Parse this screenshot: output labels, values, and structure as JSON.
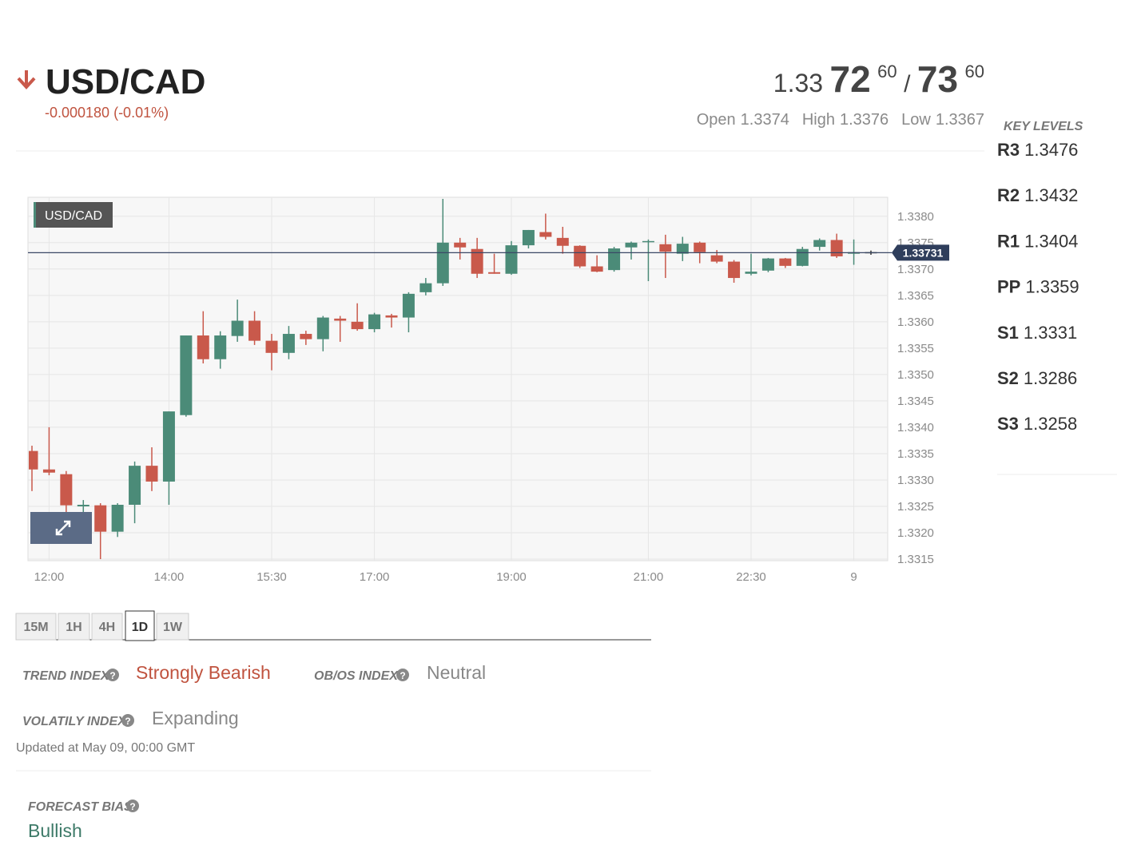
{
  "header": {
    "symbol": "USD/CAD",
    "change": "-0.000180 (-0.01%)",
    "bid": {
      "big": "1.33",
      "pips": "72",
      "fraction": "60"
    },
    "separator": "/",
    "ask": {
      "pips": "73",
      "fraction": "60"
    },
    "ohlc": [
      {
        "label": "Open",
        "value": "1.3374"
      },
      {
        "label": "High",
        "value": "1.3376"
      },
      {
        "label": "Low",
        "value": "1.3367"
      }
    ]
  },
  "key_levels": {
    "title": "KEY LEVELS",
    "levels": [
      {
        "name": "R3",
        "value": "1.3476"
      },
      {
        "name": "R2",
        "value": "1.3432"
      },
      {
        "name": "R1",
        "value": "1.3404"
      },
      {
        "name": "PP",
        "value": "1.3359"
      },
      {
        "name": "S1",
        "value": "1.3331"
      },
      {
        "name": "S2",
        "value": "1.3286"
      },
      {
        "name": "S3",
        "value": "1.3258"
      }
    ]
  },
  "timeframes": {
    "options": [
      "15M",
      "1H",
      "4H",
      "1D",
      "1W"
    ],
    "active": "1D"
  },
  "indices": [
    {
      "label": "TREND INDEX",
      "value": "Strongly Bearish",
      "color": "#c0533f"
    },
    {
      "label": "OB/OS INDEX",
      "value": "Neutral",
      "color": "#888888"
    },
    {
      "label": "VOLATILY INDEX",
      "value": "Expanding",
      "color": "#888888"
    }
  ],
  "updated": "Updated at May 09, 00:00 GMT",
  "forecast": {
    "label": "FORECAST BIAS",
    "value": "Bullish",
    "color": "#3d7a68"
  },
  "chart_data": {
    "type": "candlestick",
    "label": "USD/CAD",
    "categories": [
      null,
      "12:00",
      null,
      null,
      null,
      null,
      null,
      null,
      "14:00",
      null,
      null,
      null,
      null,
      null,
      "15:30",
      null,
      null,
      null,
      null,
      null,
      "17:00",
      null,
      null,
      null,
      null,
      null,
      null,
      null,
      "19:00",
      null,
      null,
      null,
      null,
      null,
      null,
      null,
      "21:00",
      null,
      null,
      null,
      null,
      null,
      "22:30",
      null,
      null,
      null,
      null,
      null,
      "9",
      null
    ],
    "open": [
      1.33355,
      1.3332,
      1.33311,
      1.3325,
      1.33252,
      1.33202,
      1.33253,
      1.33327,
      1.33297,
      1.33423,
      1.33574,
      1.33529,
      1.33573,
      1.33602,
      1.33564,
      1.33541,
      1.33577,
      1.33567,
      1.33606,
      1.336,
      1.33586,
      1.33612,
      1.33608,
      1.33656,
      1.33673,
      1.3375,
      1.33738,
      1.33694,
      1.33691,
      1.33745,
      1.3377,
      1.33759,
      1.33744,
      1.33705,
      1.33698,
      1.33741,
      1.33752,
      1.33747,
      1.33729,
      1.3375,
      1.33726,
      1.33714,
      1.33691,
      1.33697,
      1.3372,
      1.33706,
      1.33742,
      1.33755,
      1.33729,
      1.33732
    ],
    "high": [
      1.33365,
      1.334,
      1.33317,
      1.33262,
      1.33256,
      1.33256,
      1.33335,
      1.33362,
      1.3343,
      1.33574,
      1.3362,
      1.33582,
      1.33642,
      1.3362,
      1.33577,
      1.33592,
      1.33583,
      1.33611,
      1.33611,
      1.33635,
      1.33617,
      1.33615,
      1.33656,
      1.33683,
      1.33833,
      1.33759,
      1.33759,
      1.33729,
      1.33753,
      1.33774,
      1.33805,
      1.3378,
      1.33745,
      1.33726,
      1.33742,
      1.33752,
      1.33756,
      1.33765,
      1.33761,
      1.33752,
      1.33736,
      1.33717,
      1.33729,
      1.33721,
      1.33721,
      1.33742,
      1.33758,
      1.33767,
      1.33756,
      1.33735
    ],
    "low": [
      1.33279,
      1.33309,
      1.33238,
      1.33233,
      1.3315,
      1.33192,
      1.33218,
      1.33279,
      1.33253,
      1.3342,
      1.33521,
      1.33511,
      1.33562,
      1.33556,
      1.33508,
      1.33529,
      1.33556,
      1.33544,
      1.33562,
      1.33583,
      1.3358,
      1.33589,
      1.3358,
      1.3365,
      1.33668,
      1.33718,
      1.33683,
      1.33691,
      1.33689,
      1.33739,
      1.33756,
      1.33729,
      1.33702,
      1.33694,
      1.33695,
      1.33718,
      1.33677,
      1.33683,
      1.33715,
      1.33711,
      1.33711,
      1.33674,
      1.33688,
      1.33694,
      1.33702,
      1.33705,
      1.33735,
      1.33721,
      1.33708,
      1.33727
    ],
    "close": [
      1.3332,
      1.33314,
      1.33252,
      1.33253,
      1.33202,
      1.33253,
      1.33327,
      1.33297,
      1.3343,
      1.33574,
      1.33529,
      1.33574,
      1.33602,
      1.33564,
      1.33541,
      1.33577,
      1.33567,
      1.33608,
      1.33602,
      1.33586,
      1.33614,
      1.33608,
      1.33653,
      1.33673,
      1.3375,
      1.33741,
      1.33691,
      1.33691,
      1.33745,
      1.33774,
      1.33761,
      1.33744,
      1.33705,
      1.33695,
      1.33739,
      1.3375,
      1.33753,
      1.33733,
      1.33748,
      1.33732,
      1.33714,
      1.33683,
      1.33695,
      1.3372,
      1.33706,
      1.33738,
      1.33755,
      1.33724,
      1.33732,
      1.33732
    ],
    "up_color": "#4b8b78",
    "down_color": "#c9594b",
    "flat_color": "#333333",
    "last": 1.33731,
    "ylim": [
      1.33147,
      1.33836
    ],
    "yticks": [
      1.3315,
      {
        "value": 1.332,
        "label": "1.3320"
      },
      1.3325,
      {
        "value": 1.333,
        "label": "1.3330"
      },
      1.3335,
      {
        "value": 1.334,
        "label": "1.3340"
      },
      1.3345,
      {
        "value": 1.335,
        "label": "1.3350"
      },
      1.3355,
      {
        "value": 1.336,
        "label": "1.3360"
      },
      1.3365,
      {
        "value": 1.337,
        "label": "1.3370"
      },
      1.3375,
      {
        "value": 1.338,
        "label": "1.3380"
      }
    ],
    "grid": true
  }
}
